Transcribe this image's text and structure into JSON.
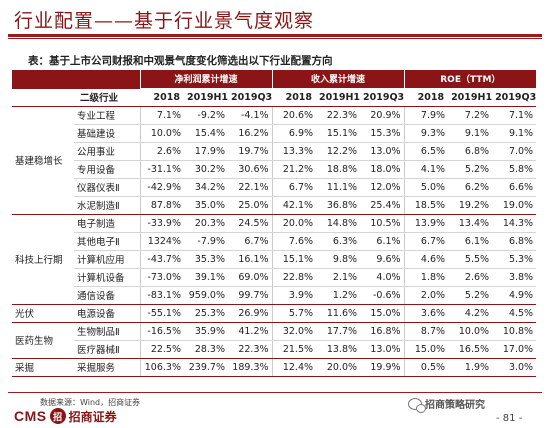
{
  "header": {
    "title": "行业配置——基于行业景气度观察",
    "caption": "表：基于上市公司财报和中观景气度变化筛选出以下行业配置方向"
  },
  "table": {
    "group_headers": [
      "净利润累计增速",
      "收入累计增速",
      "ROE（TTM）"
    ],
    "subheader_label": "二级行业",
    "columns": [
      "2018",
      "2019H1",
      "2019Q3",
      "2018",
      "2019H1",
      "2019Q3",
      "2018",
      "2019H1",
      "2019Q3"
    ],
    "groups": [
      {
        "name": "基建稳增长",
        "rows": [
          {
            "industry": "专业工程",
            "values": [
              "7.1%",
              "-9.2%",
              "-4.1%",
              "20.6%",
              "22.3%",
              "20.9%",
              "7.9%",
              "7.2%",
              "7.1%"
            ]
          },
          {
            "industry": "基础建设",
            "values": [
              "10.0%",
              "15.4%",
              "16.2%",
              "6.9%",
              "15.1%",
              "15.3%",
              "9.3%",
              "9.1%",
              "9.1%"
            ]
          },
          {
            "industry": "公用事业",
            "values": [
              "2.6%",
              "17.9%",
              "19.7%",
              "13.3%",
              "12.2%",
              "13.0%",
              "6.5%",
              "6.8%",
              "7.0%"
            ]
          },
          {
            "industry": "专用设备",
            "values": [
              "-31.1%",
              "30.2%",
              "30.6%",
              "21.2%",
              "18.8%",
              "18.0%",
              "4.1%",
              "5.2%",
              "5.8%"
            ]
          },
          {
            "industry": "仪器仪表Ⅱ",
            "values": [
              "-42.9%",
              "34.2%",
              "22.1%",
              "6.7%",
              "11.1%",
              "12.0%",
              "5.0%",
              "6.2%",
              "6.6%"
            ]
          },
          {
            "industry": "水泥制造Ⅱ",
            "values": [
              "87.8%",
              "35.0%",
              "25.0%",
              "42.1%",
              "36.8%",
              "25.4%",
              "18.5%",
              "19.2%",
              "19.0%"
            ]
          }
        ]
      },
      {
        "name": "科技上行期",
        "rows": [
          {
            "industry": "电子制造",
            "values": [
              "-33.9%",
              "20.3%",
              "24.5%",
              "20.0%",
              "14.8%",
              "10.5%",
              "13.9%",
              "13.4%",
              "14.3%"
            ]
          },
          {
            "industry": "其他电子Ⅱ",
            "values": [
              "1324%",
              "-7.9%",
              "6.7%",
              "7.6%",
              "6.3%",
              "6.1%",
              "6.7%",
              "6.1%",
              "6.8%"
            ]
          },
          {
            "industry": "计算机应用",
            "values": [
              "-43.7%",
              "35.3%",
              "16.1%",
              "15.1%",
              "9.8%",
              "9.6%",
              "4.6%",
              "5.5%",
              "5.3%"
            ]
          },
          {
            "industry": "计算机设备",
            "values": [
              "-73.0%",
              "39.1%",
              "69.0%",
              "22.8%",
              "2.1%",
              "4.0%",
              "1.8%",
              "2.6%",
              "3.8%"
            ]
          },
          {
            "industry": "通信设备",
            "values": [
              "-83.1%",
              "959.0%",
              "99.7%",
              "3.9%",
              "1.2%",
              "-0.6%",
              "2.0%",
              "5.2%",
              "4.9%"
            ]
          }
        ]
      },
      {
        "name": "光伏",
        "rows": [
          {
            "industry": "电源设备",
            "values": [
              "-55.1%",
              "25.3%",
              "26.9%",
              "5.7%",
              "11.6%",
              "15.0%",
              "3.6%",
              "4.2%",
              "4.5%"
            ]
          }
        ]
      },
      {
        "name": "医药生物",
        "rows": [
          {
            "industry": "生物制品Ⅱ",
            "values": [
              "-16.5%",
              "35.9%",
              "41.2%",
              "32.0%",
              "17.7%",
              "16.8%",
              "8.7%",
              "10.0%",
              "10.8%"
            ]
          },
          {
            "industry": "医疗器械Ⅱ",
            "values": [
              "22.5%",
              "28.3%",
              "22.3%",
              "21.5%",
              "13.8%",
              "13.0%",
              "15.0%",
              "16.5%",
              "17.0%"
            ]
          }
        ]
      },
      {
        "name": "采掘",
        "rows": [
          {
            "industry": "采掘服务",
            "values": [
              "106.3%",
              "239.7%",
              "189.3%",
              "12.4%",
              "20.0%",
              "19.9%",
              "0.5%",
              "1.9%",
              "3.0%"
            ]
          }
        ]
      }
    ]
  },
  "footer": {
    "source": "数据来源：Wind，招商证券",
    "logo_text": "CMS",
    "logo_mark": "招",
    "logo_name": "招商证券",
    "wechat_account": "招商策略研究",
    "page_number": "- 81 -"
  },
  "colors": {
    "brand_red": "#8a1416"
  }
}
